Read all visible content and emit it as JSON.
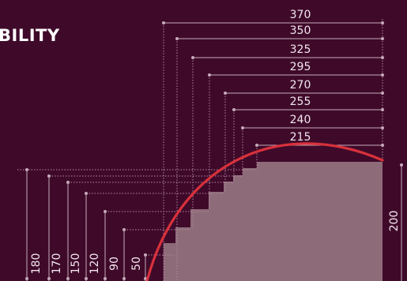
{
  "title": "BILITY",
  "colors": {
    "background": "#3f0a2a",
    "step_fill": "#8e6b78",
    "curve": "#d8313b",
    "guide": "#b58aa3",
    "text": "#f2e6ee"
  },
  "top_dimensions": [
    "370",
    "350",
    "325",
    "295",
    "270",
    "255",
    "240",
    "215"
  ],
  "left_dimensions": [
    "180",
    "170",
    "150",
    "120",
    "90",
    "50"
  ],
  "right_dimension": "200"
}
